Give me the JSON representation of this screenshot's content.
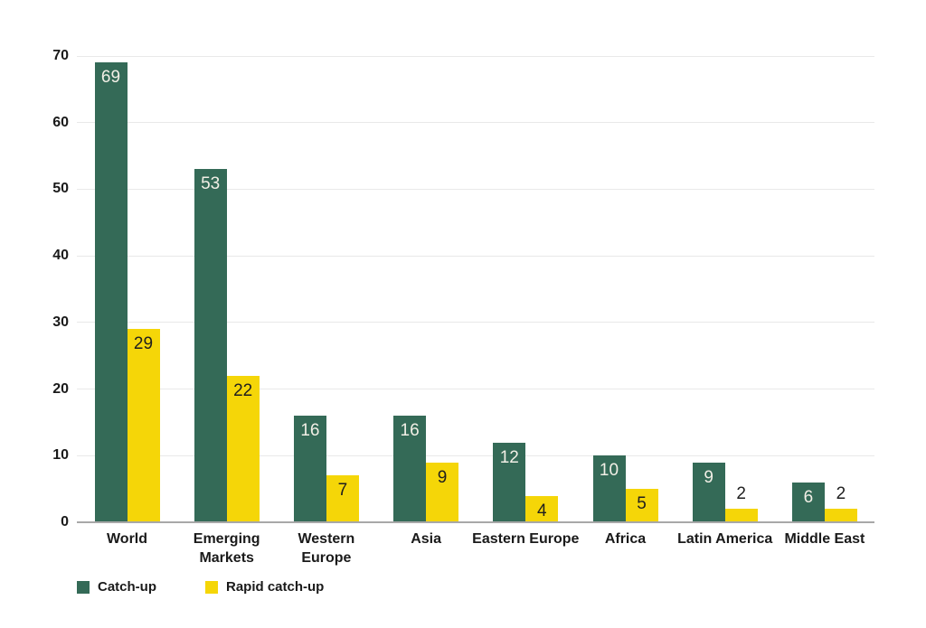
{
  "chart_data": {
    "type": "bar",
    "title": "",
    "xlabel": "",
    "ylabel": "",
    "categories": [
      "World",
      "Emerging\nMarkets",
      "Western\nEurope",
      "Asia",
      "Eastern Europe",
      "Africa",
      "Latin America",
      "Middle East"
    ],
    "series": [
      {
        "name": "Catch-up",
        "color": "#346a57",
        "label_color": "#f2efe6",
        "values": [
          69,
          53,
          16,
          16,
          12,
          10,
          9,
          6
        ]
      },
      {
        "name": "Rapid catch-up",
        "color": "#f5d608",
        "label_color": "#1f1f1f",
        "values": [
          29,
          22,
          7,
          9,
          4,
          5,
          2,
          2
        ]
      }
    ],
    "ylim": [
      0,
      70
    ],
    "yticks": [
      0,
      10,
      20,
      30,
      40,
      50,
      60,
      70
    ],
    "grid": true,
    "legend_position": "bottom-left",
    "value_labels_shown": true
  },
  "colors": {
    "background": "#ffffff",
    "gridline": "#e9e9e9",
    "axis_line": "#a8a8a8",
    "text": "#1a1a1a",
    "series_catch_up": "#346a57",
    "series_rapid_catch_up": "#f5d608"
  }
}
